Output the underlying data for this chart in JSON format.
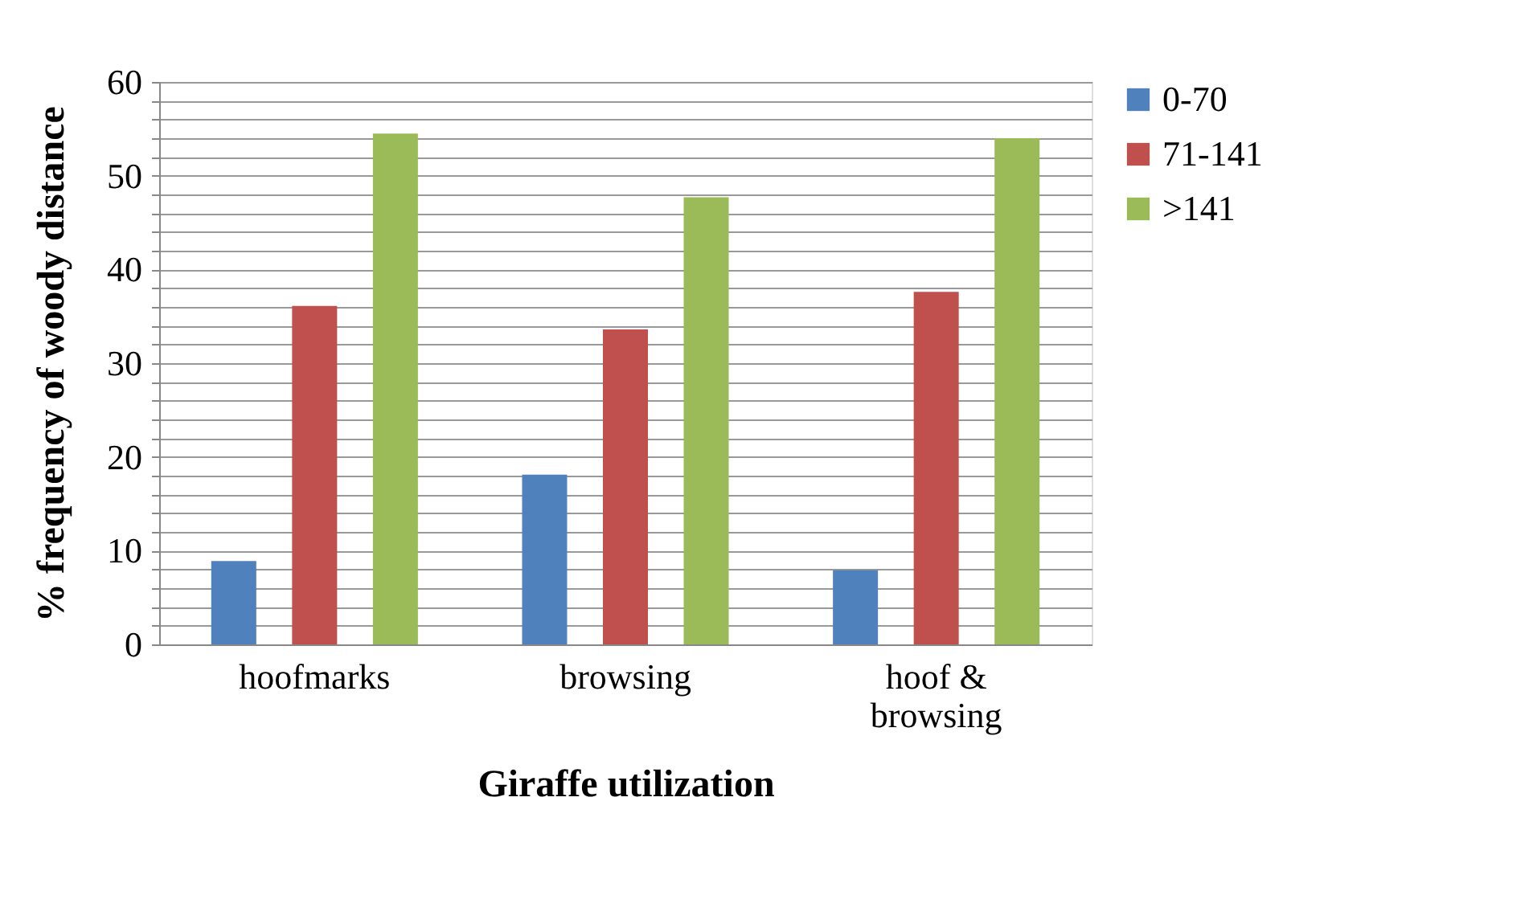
{
  "chart_data": {
    "type": "bar",
    "xlabel": "Giraffe utilization",
    "ylabel": "% frequency of woody distance",
    "categories": [
      "hoofmarks",
      "browsing",
      "hoof & browsing"
    ],
    "series": [
      {
        "name": "0-70",
        "color": "#4f81bd",
        "values": [
          8.9,
          18.1,
          7.9
        ]
      },
      {
        "name": "71-141",
        "color": "#c0504d",
        "values": [
          36.1,
          33.6,
          37.6
        ]
      },
      {
        "name": ">141",
        "color": "#9bbb59",
        "values": [
          54.5,
          47.7,
          54.0
        ]
      }
    ],
    "ylim": [
      0,
      60
    ],
    "yticks": [
      0,
      {
        "value": 2,
        "label": null
      },
      {
        "value": 4,
        "label": null
      },
      {
        "value": 6,
        "label": null
      },
      {
        "value": 8,
        "label": null
      },
      10,
      {
        "value": 12,
        "label": null
      },
      {
        "value": 14,
        "label": null
      },
      {
        "value": 16,
        "label": null
      },
      {
        "value": 18,
        "label": null
      },
      20,
      {
        "value": 22,
        "label": null
      },
      {
        "value": 24,
        "label": null
      },
      {
        "value": 26,
        "label": null
      },
      {
        "value": 28,
        "label": null
      },
      30,
      {
        "value": 32,
        "label": null
      },
      {
        "value": 34,
        "label": null
      },
      {
        "value": 36,
        "label": null
      },
      {
        "value": 38,
        "label": null
      },
      40,
      {
        "value": 42,
        "label": null
      },
      {
        "value": 44,
        "label": null
      },
      {
        "value": 46,
        "label": null
      },
      {
        "value": 48,
        "label": null
      },
      50,
      {
        "value": 52,
        "label": null
      },
      {
        "value": 54,
        "label": null
      },
      {
        "value": 56,
        "label": null
      },
      {
        "value": 58,
        "label": null
      },
      60
    ],
    "grid": true,
    "legend": "right"
  }
}
